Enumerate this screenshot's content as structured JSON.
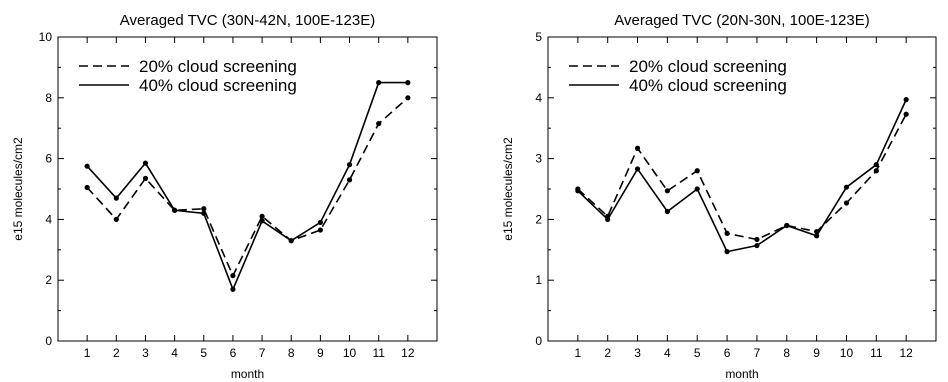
{
  "chart_data": [
    {
      "type": "line",
      "title": "Averaged TVC (30N-42N, 100E-123E)",
      "xlabel": "month",
      "ylabel": "e15 molecules/cm2",
      "xlim": [
        0,
        13
      ],
      "ylim": [
        0,
        10
      ],
      "x_ticks": [
        "1",
        "2",
        "3",
        "4",
        "5",
        "6",
        "7",
        "8",
        "9",
        "10",
        "11",
        "12"
      ],
      "y_ticks": [
        "0",
        "2",
        "4",
        "6",
        "8",
        "10"
      ],
      "grid": false,
      "legend_position": "top-left",
      "x": [
        1,
        2,
        3,
        4,
        5,
        6,
        7,
        8,
        9,
        10,
        11,
        12
      ],
      "series": [
        {
          "name": "20% cloud screening",
          "dash": "dashed",
          "values": [
            5.05,
            4.0,
            5.35,
            4.3,
            4.35,
            2.15,
            4.1,
            3.3,
            3.65,
            5.3,
            7.15,
            8.0
          ]
        },
        {
          "name": "40% cloud screening",
          "dash": "solid",
          "values": [
            5.75,
            4.7,
            5.85,
            4.3,
            4.2,
            1.7,
            3.95,
            3.3,
            3.9,
            5.8,
            8.5,
            8.5
          ]
        }
      ]
    },
    {
      "type": "line",
      "title": "Averaged TVC (20N-30N, 100E-123E)",
      "xlabel": "month",
      "ylabel": "e15 molecules/cm2",
      "xlim": [
        0,
        13
      ],
      "ylim": [
        0,
        5
      ],
      "x_ticks": [
        "1",
        "2",
        "3",
        "4",
        "5",
        "6",
        "7",
        "8",
        "9",
        "10",
        "11",
        "12"
      ],
      "y_ticks": [
        "0",
        "1",
        "2",
        "3",
        "4",
        "5"
      ],
      "grid": false,
      "legend_position": "top-left",
      "x": [
        1,
        2,
        3,
        4,
        5,
        6,
        7,
        8,
        9,
        10,
        11,
        12
      ],
      "series": [
        {
          "name": "20% cloud screening",
          "dash": "dashed",
          "values": [
            2.5,
            2.05,
            3.17,
            2.47,
            2.8,
            1.77,
            1.67,
            1.9,
            1.8,
            2.27,
            2.8,
            3.73
          ]
        },
        {
          "name": "40% cloud screening",
          "dash": "solid",
          "values": [
            2.47,
            2.0,
            2.83,
            2.13,
            2.5,
            1.47,
            1.57,
            1.9,
            1.73,
            2.53,
            2.9,
            3.97
          ]
        }
      ]
    }
  ]
}
